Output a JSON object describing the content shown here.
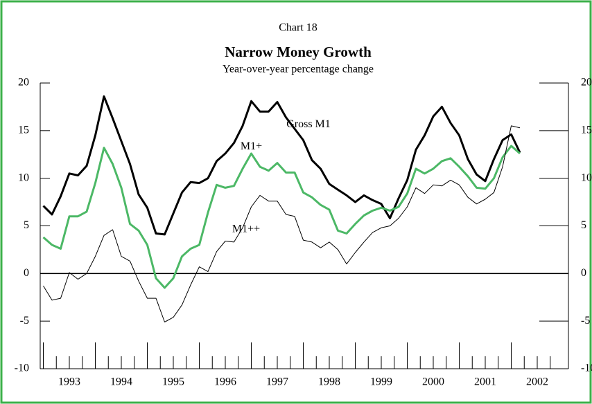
{
  "chart_data": {
    "type": "line",
    "title": "Narrow Money Growth",
    "chart_label": "Chart 18",
    "subtitle": "Year-over-year percentage change",
    "x": [
      1993,
      1993.167,
      1993.333,
      1993.5,
      1993.667,
      1993.833,
      1994,
      1994.167,
      1994.333,
      1994.5,
      1994.667,
      1994.833,
      1995,
      1995.167,
      1995.333,
      1995.5,
      1995.667,
      1995.833,
      1996,
      1996.167,
      1996.333,
      1996.5,
      1996.667,
      1996.833,
      1997,
      1997.167,
      1997.333,
      1997.5,
      1997.667,
      1997.833,
      1998,
      1998.167,
      1998.333,
      1998.5,
      1998.667,
      1998.833,
      1999,
      1999.167,
      1999.333,
      1999.5,
      1999.667,
      1999.833,
      2000,
      2000.167,
      2000.333,
      2000.5,
      2000.667,
      2000.833,
      2001,
      2001.167,
      2001.333,
      2001.5,
      2001.667,
      2001.833,
      2002,
      2002.167
    ],
    "series": [
      {
        "name": "Gross M1",
        "color": "#000000",
        "width": 3,
        "values": [
          7.1,
          6.2,
          8.1,
          10.5,
          10.3,
          11.3,
          14.5,
          18.6,
          16.3,
          13.9,
          11.5,
          8.3,
          6.9,
          4.2,
          4.1,
          6.3,
          8.5,
          9.6,
          9.5,
          10.0,
          11.8,
          12.6,
          13.7,
          15.5,
          18.1,
          17.0,
          17.0,
          18.0,
          16.4,
          15.2,
          14.0,
          11.9,
          11.0,
          9.4,
          8.8,
          8.2,
          7.5,
          8.2,
          7.7,
          7.3,
          5.8,
          7.9,
          9.8,
          13.0,
          14.5,
          16.5,
          17.5,
          15.8,
          14.5,
          12.0,
          10.4,
          9.7,
          12.0,
          14.0,
          14.6,
          12.7
        ]
      },
      {
        "name": "M1+",
        "color": "#4cb866",
        "width": 3,
        "values": [
          3.8,
          3.0,
          2.6,
          6.0,
          6.0,
          6.5,
          9.5,
          13.2,
          11.5,
          9.0,
          5.2,
          4.5,
          3.0,
          -0.5,
          -1.5,
          -0.5,
          1.8,
          2.6,
          3.0,
          6.4,
          9.3,
          9.0,
          9.2,
          11.0,
          12.6,
          11.2,
          10.8,
          11.6,
          10.6,
          10.6,
          8.5,
          8.0,
          7.2,
          6.7,
          4.5,
          4.2,
          5.2,
          6.1,
          6.6,
          6.9,
          6.6,
          7.0,
          8.4,
          11.0,
          10.5,
          11.0,
          11.8,
          12.1,
          11.2,
          10.2,
          9.0,
          8.9,
          10.0,
          12.2,
          13.4,
          12.6
        ]
      },
      {
        "name": "M1++",
        "color": "#000000",
        "width": 1,
        "values": [
          -1.3,
          -2.8,
          -2.6,
          0.1,
          -0.6,
          0.0,
          1.8,
          4.0,
          4.6,
          1.8,
          1.3,
          -0.8,
          -2.6,
          -2.6,
          -5.1,
          -4.6,
          -3.3,
          -1.2,
          0.7,
          0.2,
          2.3,
          3.4,
          3.3,
          4.8,
          7.0,
          8.2,
          7.6,
          7.6,
          6.2,
          6.0,
          3.5,
          3.3,
          2.7,
          3.3,
          2.5,
          1.0,
          2.2,
          3.3,
          4.3,
          4.8,
          5.0,
          5.8,
          7.0,
          9.0,
          8.4,
          9.3,
          9.2,
          9.8,
          9.3,
          8.0,
          7.3,
          7.8,
          8.5,
          11.2,
          15.5,
          15.3
        ]
      }
    ],
    "series_labels": [
      {
        "text": "Gross M1",
        "x": 1998.1,
        "y": 15.6
      },
      {
        "text": "M1+",
        "x": 1997.0,
        "y": 13.3
      },
      {
        "text": "M1++",
        "x": 1996.9,
        "y": 4.6
      }
    ],
    "xlim": [
      1992.94,
      2003.1
    ],
    "xticks": [
      {
        "value": 1993.5,
        "label": "1993"
      },
      {
        "value": 1994.5,
        "label": "1994"
      },
      {
        "value": 1995.5,
        "label": "1995"
      },
      {
        "value": 1996.5,
        "label": "1996"
      },
      {
        "value": 1997.5,
        "label": "1997"
      },
      {
        "value": 1998.5,
        "label": "1998"
      },
      {
        "value": 1999.5,
        "label": "1999"
      },
      {
        "value": 2000.5,
        "label": "2000"
      },
      {
        "value": 2001.5,
        "label": "2001"
      },
      {
        "value": 2002.5,
        "label": "2002"
      }
    ],
    "ylim": [
      -10,
      20
    ],
    "yticks": [
      -10,
      -5,
      0,
      5,
      10,
      15,
      20
    ],
    "frame_color": "#3cb04a"
  }
}
